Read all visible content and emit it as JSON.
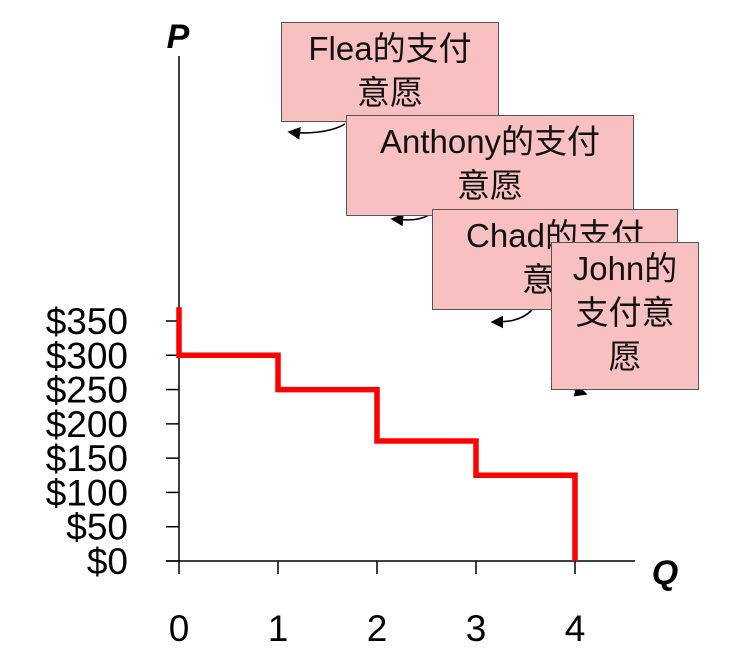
{
  "chart_data": {
    "type": "line",
    "step": true,
    "title": "",
    "xlabel": "Q",
    "ylabel": "P",
    "x_ticks": [
      "0",
      "1",
      "2",
      "3",
      "4"
    ],
    "y_ticks": [
      "$0",
      "$50",
      "$100",
      "$150",
      "$200",
      "$250",
      "$300",
      "$350"
    ],
    "xlim": [
      0,
      4
    ],
    "ylim": [
      0,
      350
    ],
    "grid": false,
    "series": [
      {
        "color": "#ff0000",
        "points": [
          [
            0,
            370
          ],
          [
            0,
            300
          ],
          [
            1,
            300
          ],
          [
            1,
            250
          ],
          [
            2,
            250
          ],
          [
            2,
            175
          ],
          [
            3,
            175
          ],
          [
            3,
            125
          ],
          [
            4,
            125
          ],
          [
            4,
            0
          ]
        ]
      }
    ],
    "annotations": [
      {
        "line1": "Flea的支付",
        "line2": "意愿",
        "line3": ""
      },
      {
        "line1": "Anthony的支付",
        "line2": "意愿",
        "line3": ""
      },
      {
        "line1": "Chad的支付",
        "line2": "意愿",
        "line3": ""
      },
      {
        "line1": "John的",
        "line2": "支付意",
        "line3": "愿"
      }
    ]
  },
  "colors": {
    "line": "#ff0000",
    "callout_fill": "#f8c0c0",
    "axis": "#000000"
  }
}
